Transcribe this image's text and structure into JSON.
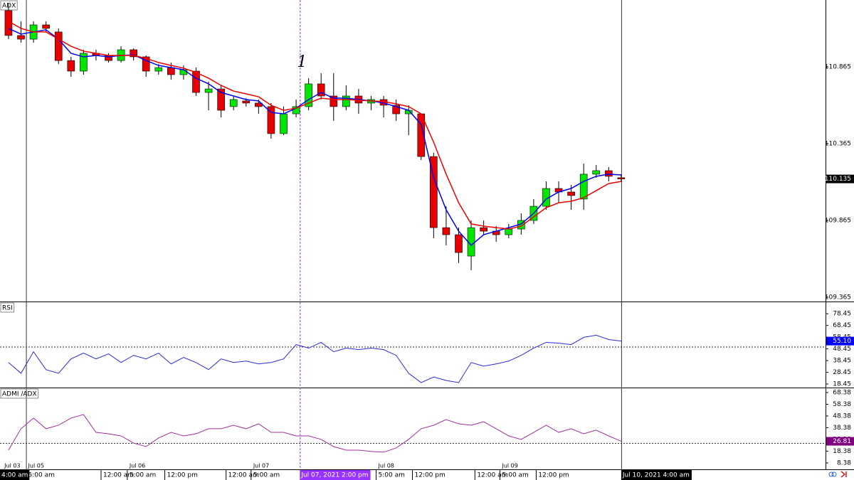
{
  "x_axis": {
    "xlim": [
      -0.68,
      65.34
    ],
    "date_ticks": [
      {
        "value": -0.5,
        "label": "Jul 03"
      },
      {
        "value": 1.4,
        "label": "Jul 05"
      },
      {
        "value": 9.5,
        "label": "Jul 06"
      },
      {
        "value": 19.4,
        "label": "Jul 07"
      },
      {
        "value": 29.4,
        "label": "Jul 08"
      },
      {
        "value": 39.3,
        "label": "Jul 09"
      }
    ],
    "time_ticks": [
      {
        "value": 1.4,
        "label": "5:00 am"
      },
      {
        "value": 7.4,
        "label": "12:00 am"
      },
      {
        "value": 9.5,
        "label": "5:00 am"
      },
      {
        "value": 12.5,
        "label": "12:00 pm"
      },
      {
        "value": 17.4,
        "label": "12:00 am"
      },
      {
        "value": 19.4,
        "label": "5:00 am"
      },
      {
        "value": 29.4,
        "label": "5:00 am"
      },
      {
        "value": 32.3,
        "label": "12:00 pm"
      },
      {
        "value": 37.3,
        "label": "12:00 am"
      },
      {
        "value": 39.3,
        "label": "5:00 am"
      },
      {
        "value": 42.2,
        "label": "12:00 pm"
      }
    ],
    "start": {
      "value": -0.68,
      "label": "4:00 am"
    },
    "cursor": {
      "value": 23.3,
      "label": "Jul 07, 2021 2:00 pm",
      "color": "#9933ff"
    },
    "current": {
      "value": 49,
      "label": "Jul 10, 2021 4:00 am"
    },
    "vlines": [
      1.4,
      49
    ]
  },
  "chart_data": [
    {
      "type": "candlestick",
      "title": "ADX",
      "annotation": "1",
      "ylim": [
        109.337,
        111.3
      ],
      "yticks": [
        109.365,
        109.865,
        110.365,
        110.865
      ],
      "up_color": "#00e600",
      "down_color": "#e60000",
      "open": [
        111.231,
        111.069,
        111.045,
        111.138,
        111.092,
        110.906,
        110.837,
        110.953,
        110.939,
        110.906,
        110.976,
        110.93,
        110.837,
        110.86,
        110.814,
        110.837,
        110.698,
        110.721,
        110.606,
        110.643,
        110.629,
        110.606,
        110.43,
        110.559,
        110.606,
        110.754,
        110.675,
        110.606,
        110.675,
        110.629,
        110.652,
        110.615,
        110.559,
        110.559,
        110.281,
        109.818,
        109.772,
        109.633,
        109.818,
        109.795,
        109.772,
        109.809,
        109.865,
        109.957,
        110.073,
        110.05,
        110.004,
        110.166,
        110.189,
        110.143
      ],
      "high": [
        111.277,
        111.161,
        111.161,
        111.161,
        111.115,
        110.93,
        110.976,
        110.976,
        110.953,
        110.999,
        110.985,
        110.939,
        110.883,
        110.893,
        110.874,
        110.86,
        110.768,
        110.744,
        110.675,
        110.661,
        110.652,
        110.629,
        110.606,
        110.652,
        110.791,
        110.823,
        110.823,
        110.744,
        110.721,
        110.675,
        110.675,
        110.652,
        110.615,
        110.559,
        110.305,
        109.957,
        109.818,
        109.865,
        109.865,
        109.828,
        109.842,
        109.911,
        110.004,
        110.119,
        110.119,
        110.096,
        110.235,
        110.226,
        110.212,
        110.166
      ],
      "low": [
        111.045,
        111.022,
        111.022,
        111.092,
        110.883,
        110.8,
        110.814,
        110.906,
        110.893,
        110.893,
        110.906,
        110.8,
        110.814,
        110.781,
        110.781,
        110.675,
        110.582,
        110.536,
        110.582,
        110.606,
        110.559,
        110.397,
        110.42,
        110.536,
        110.582,
        110.652,
        110.513,
        110.582,
        110.559,
        110.582,
        110.536,
        110.513,
        110.42,
        110.258,
        109.749,
        109.703,
        109.587,
        109.541,
        109.772,
        109.726,
        109.749,
        109.772,
        109.842,
        109.934,
        109.98,
        109.934,
        109.934,
        110.143,
        110.119,
        110.115
      ],
      "close": [
        111.069,
        111.045,
        111.138,
        111.115,
        110.906,
        110.837,
        110.953,
        110.939,
        110.906,
        110.976,
        110.93,
        110.837,
        110.86,
        110.814,
        110.846,
        110.698,
        110.721,
        110.582,
        110.652,
        110.629,
        110.606,
        110.43,
        110.559,
        110.606,
        110.754,
        110.675,
        110.606,
        110.675,
        110.629,
        110.652,
        110.615,
        110.559,
        110.582,
        110.281,
        109.818,
        109.772,
        109.656,
        109.818,
        109.795,
        109.772,
        109.809,
        109.865,
        109.957,
        110.073,
        110.05,
        110.027,
        110.166,
        110.189,
        110.152,
        110.135
      ],
      "lines": [
        {
          "color": "#0000ee",
          "values": [
            111.115,
            111.078,
            111.092,
            111.106,
            111.045,
            110.953,
            110.93,
            110.939,
            110.93,
            110.939,
            110.943,
            110.906,
            110.874,
            110.86,
            110.846,
            110.791,
            110.754,
            110.698,
            110.675,
            110.652,
            110.643,
            110.568,
            110.559,
            110.596,
            110.652,
            110.698,
            110.661,
            110.661,
            110.652,
            110.643,
            110.629,
            110.606,
            110.582,
            110.49,
            110.143,
            109.934,
            109.795,
            109.703,
            109.772,
            109.795,
            109.818,
            109.842,
            109.911,
            110.004,
            110.05,
            110.073,
            110.119,
            110.152,
            110.166,
            110.161
          ]
        },
        {
          "color": "#ee0000",
          "values": [
            111.161,
            111.115,
            111.092,
            111.092,
            111.045,
            110.999,
            110.967,
            110.953,
            110.939,
            110.939,
            110.939,
            110.92,
            110.893,
            110.874,
            110.856,
            110.828,
            110.791,
            110.744,
            110.707,
            110.689,
            110.67,
            110.615,
            110.582,
            110.596,
            110.629,
            110.661,
            110.652,
            110.652,
            110.647,
            110.643,
            110.638,
            110.624,
            110.606,
            110.559,
            110.374,
            110.166,
            109.98,
            109.842,
            109.828,
            109.818,
            109.809,
            109.828,
            109.888,
            109.948,
            109.98,
            109.99,
            110.013,
            110.059,
            110.105,
            110.119
          ]
        }
      ]
    },
    {
      "type": "line",
      "title": "RSI",
      "color": "#2a2ad6",
      "ylim": [
        15.4,
        88.3
      ],
      "yticks": [
        18.45,
        28.45,
        38.45,
        48.45,
        58.45,
        68.45,
        78.45
      ],
      "levels": [
        50
      ],
      "values": [
        36.8,
        27.6,
        46.0,
        30.7,
        27.6,
        39.9,
        44.8,
        39.9,
        44.2,
        36.8,
        42.9,
        39.9,
        44.8,
        35.6,
        41.1,
        36.8,
        30.7,
        39.9,
        36.8,
        38.0,
        35.6,
        36.8,
        39.9,
        52.1,
        49.1,
        54.0,
        46.0,
        49.1,
        47.8,
        49.1,
        47.8,
        42.9,
        27.6,
        19.6,
        24.4,
        21.5,
        19.6,
        36.8,
        33.7,
        35.6,
        38.0,
        42.9,
        49.1,
        54.0,
        53.4,
        52.1,
        58.3,
        60.1,
        56.4,
        55.1
      ],
      "current": {
        "value": 55.1,
        "label": "55.10"
      },
      "current_color": "#0000ff"
    },
    {
      "type": "line",
      "title": "ADMI /ADX",
      "color": "#a0309a",
      "ylim": [
        2.9,
        72.0
      ],
      "yticks": [
        8.38,
        18.38,
        28.38,
        38.38,
        48.38,
        58.38,
        68.38
      ],
      "levels": [
        25
      ],
      "values": [
        19.3,
        37.5,
        46.6,
        37.5,
        40.5,
        46.6,
        49.6,
        34.4,
        33.2,
        31.4,
        25.3,
        22.3,
        29.6,
        34.4,
        31.4,
        33.2,
        37.5,
        37.5,
        40.5,
        37.5,
        41.7,
        34.4,
        34.4,
        31.4,
        31.4,
        28.4,
        22.3,
        19.3,
        19.3,
        18.1,
        17.5,
        21.1,
        28.4,
        37.5,
        40.5,
        45.3,
        41.7,
        40.5,
        43.5,
        37.5,
        31.4,
        28.4,
        34.4,
        40.5,
        34.4,
        37.5,
        33.2,
        36.3,
        31.4,
        26.81
      ],
      "current": {
        "value": 26.81,
        "label": "26.81"
      },
      "current_color": "#800080"
    }
  ]
}
